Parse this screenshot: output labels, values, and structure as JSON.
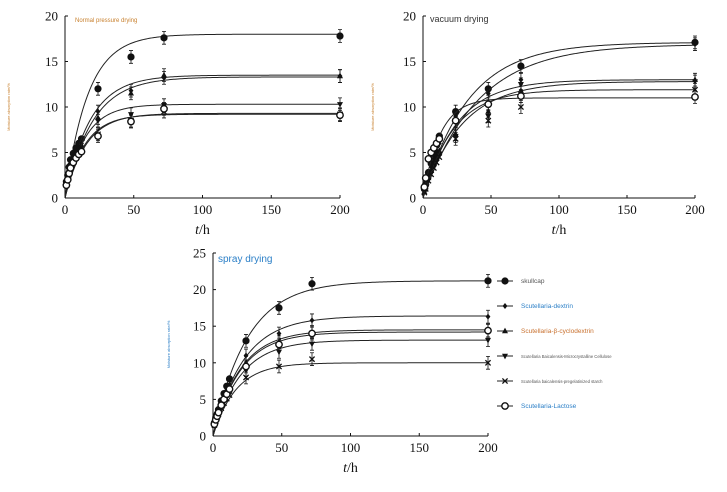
{
  "charts": [
    {
      "type": "line",
      "title": "Normal pressure drying",
      "title_color": "#c8802e",
      "ylabel": "Moisture absorption rate/%",
      "ylabel_color": "#c8802e",
      "xlabel_italic": "t",
      "xlabel_unit": "/h",
      "xlim": [
        0,
        200
      ],
      "ylim": [
        0,
        20
      ],
      "xticks": [
        "0",
        "50",
        "100",
        "150",
        "200"
      ],
      "yticks": [
        "0",
        "5",
        "10",
        "15",
        "20"
      ],
      "series": [
        {
          "marker": "circle-filled",
          "plateau": 18.0,
          "k": 0.06,
          "x": [
            1,
            2,
            3,
            4,
            6,
            8,
            10,
            12,
            24,
            48,
            72,
            200
          ],
          "y": [
            1.8,
            2.5,
            3.4,
            4.2,
            4.9,
            5.5,
            6.0,
            6.5,
            12.0,
            15.5,
            17.6,
            17.8
          ]
        },
        {
          "marker": "diamond",
          "plateau": 13.5,
          "k": 0.055,
          "x": [
            1,
            2,
            3,
            4,
            6,
            8,
            10,
            12,
            24,
            48,
            72,
            200
          ],
          "y": [
            1.6,
            2.4,
            3.2,
            4.0,
            4.6,
            5.1,
            5.6,
            6.0,
            9.5,
            11.8,
            13.2,
            13.4
          ]
        },
        {
          "marker": "triangle",
          "plateau": 13.3,
          "k": 0.05,
          "x": [
            1,
            2,
            3,
            4,
            6,
            8,
            10,
            12,
            24,
            48,
            72,
            200
          ],
          "y": [
            1.5,
            2.3,
            3.0,
            3.8,
            4.4,
            5.0,
            5.4,
            5.8,
            8.8,
            11.5,
            13.5,
            13.4
          ]
        },
        {
          "marker": "triangle-down",
          "plateau": 10.3,
          "k": 0.07,
          "x": [
            1,
            2,
            3,
            4,
            6,
            8,
            10,
            12,
            24,
            48,
            72,
            200
          ],
          "y": [
            1.5,
            2.2,
            3.0,
            3.6,
            4.2,
            4.7,
            5.1,
            5.5,
            8.5,
            9.2,
            10.2,
            10.3
          ]
        },
        {
          "marker": "x",
          "plateau": 9.2,
          "k": 0.07,
          "x": [
            1,
            2,
            3,
            4,
            6,
            8,
            10,
            12,
            24,
            48,
            72,
            200
          ],
          "y": [
            1.4,
            2.1,
            2.8,
            3.4,
            4.0,
            4.5,
            4.9,
            5.2,
            7.0,
            8.5,
            9.5,
            9.2
          ]
        },
        {
          "marker": "circle-open",
          "plateau": 9.3,
          "k": 0.065,
          "x": [
            1,
            2,
            3,
            4,
            6,
            8,
            10,
            12,
            24,
            48,
            72,
            200
          ],
          "y": [
            1.4,
            2.0,
            2.7,
            3.3,
            3.9,
            4.4,
            4.8,
            5.1,
            6.8,
            8.4,
            9.8,
            9.1
          ]
        }
      ]
    },
    {
      "type": "line",
      "title": "vacuum drying",
      "title_color": "#333333",
      "ylabel": "Moisture absorption rate/%",
      "ylabel_color": "#c8802e",
      "xlabel_italic": "t",
      "xlabel_unit": "/h",
      "xlim": [
        0,
        200
      ],
      "ylim": [
        0,
        20
      ],
      "xticks": [
        "0",
        "50",
        "100",
        "150",
        "200"
      ],
      "yticks": [
        "0",
        "5",
        "10",
        "15",
        "20"
      ],
      "series": [
        {
          "marker": "circle-filled",
          "plateau": 17.1,
          "k": 0.03,
          "x": [
            1,
            2,
            4,
            6,
            8,
            10,
            12,
            24,
            48,
            72,
            200
          ],
          "y": [
            1.0,
            1.5,
            2.8,
            3.8,
            4.8,
            5.8,
            6.8,
            9.5,
            12.0,
            14.5,
            17.1
          ]
        },
        {
          "marker": "diamond",
          "plateau": 16.9,
          "k": 0.025,
          "x": [
            1,
            2,
            4,
            6,
            8,
            10,
            12,
            24,
            48,
            72,
            200
          ],
          "y": [
            0.8,
            1.3,
            2.5,
            3.4,
            4.3,
            5.2,
            6.0,
            9.0,
            11.5,
            13.0,
            16.9
          ]
        },
        {
          "marker": "triangle",
          "plateau": 13.0,
          "k": 0.04,
          "x": [
            1,
            2,
            4,
            6,
            8,
            10,
            12,
            24,
            48,
            72,
            200
          ],
          "y": [
            0.7,
            1.2,
            2.2,
            3.0,
            3.8,
            4.5,
            5.2,
            7.0,
            9.5,
            11.8,
            13.0
          ]
        },
        {
          "marker": "triangle-down",
          "plateau": 12.8,
          "k": 0.035,
          "x": [
            1,
            2,
            4,
            6,
            8,
            10,
            12,
            24,
            48,
            72,
            200
          ],
          "y": [
            0.7,
            1.1,
            2.0,
            2.8,
            3.5,
            4.2,
            4.8,
            6.8,
            9.0,
            12.5,
            12.8
          ]
        },
        {
          "marker": "x",
          "plateau": 11.9,
          "k": 0.045,
          "x": [
            1,
            2,
            4,
            6,
            8,
            10,
            12,
            24,
            48,
            72,
            200
          ],
          "y": [
            0.6,
            1.0,
            1.9,
            2.6,
            3.3,
            3.9,
            4.5,
            6.5,
            8.5,
            10.0,
            11.9
          ]
        },
        {
          "marker": "circle-open",
          "plateau": 11.0,
          "k": 0.08,
          "x": [
            1,
            2,
            4,
            6,
            8,
            10,
            12,
            24,
            48,
            72,
            200
          ],
          "y": [
            1.2,
            2.2,
            4.3,
            5.0,
            5.5,
            6.0,
            6.5,
            8.5,
            10.3,
            11.2,
            11.1
          ]
        }
      ]
    },
    {
      "type": "line",
      "title": "spray drying",
      "title_color": "#2b7fc7",
      "ylabel": "Moisture absorption rate/%",
      "ylabel_color": "#2b7fc7",
      "xlabel_italic": "t",
      "xlabel_unit": "/h",
      "xlim": [
        0,
        200
      ],
      "ylim": [
        0,
        25
      ],
      "xticks": [
        "0",
        "50",
        "100",
        "150",
        "200"
      ],
      "yticks": [
        "0",
        "5",
        "10",
        "15",
        "20",
        "25"
      ],
      "legend_position": "right",
      "series": [
        {
          "name": "skullcap",
          "name_color": "#555555",
          "marker": "circle-filled",
          "plateau": 21.2,
          "k": 0.04,
          "x": [
            1,
            2,
            3,
            4,
            6,
            8,
            10,
            12,
            24,
            48,
            72,
            200
          ],
          "y": [
            1.8,
            2.5,
            3.0,
            3.6,
            4.8,
            5.8,
            6.8,
            7.8,
            13.0,
            17.5,
            20.8,
            21.2
          ]
        },
        {
          "name": "Scutellaria-dextrin",
          "name_color": "#2b7fc7",
          "marker": "diamond",
          "plateau": 16.4,
          "k": 0.045,
          "x": [
            1,
            2,
            3,
            4,
            6,
            8,
            10,
            12,
            24,
            48,
            72,
            200
          ],
          "y": [
            1.7,
            2.3,
            2.9,
            3.4,
            4.5,
            5.4,
            6.2,
            7.0,
            11.0,
            14.0,
            15.8,
            16.3
          ]
        },
        {
          "name": "Scutellaria-β-cyclodextrin",
          "name_color": "#c8702e",
          "marker": "triangle",
          "plateau": 14.5,
          "k": 0.05,
          "x": [
            1,
            2,
            3,
            4,
            6,
            8,
            10,
            12,
            24,
            48,
            72,
            200
          ],
          "y": [
            1.6,
            2.2,
            2.7,
            3.2,
            4.2,
            5.0,
            5.8,
            6.5,
            10.0,
            12.8,
            14.2,
            14.4
          ]
        },
        {
          "name": "Scutellaria Baicalensis-Microcrystalline Cellulose",
          "name_color": "#555555",
          "marker": "triangle-down",
          "plateau": 13.1,
          "k": 0.05,
          "x": [
            1,
            2,
            3,
            4,
            6,
            8,
            10,
            12,
            24,
            48,
            72,
            200
          ],
          "y": [
            1.5,
            2.1,
            2.6,
            3.1,
            4.0,
            4.8,
            5.5,
            6.1,
            9.0,
            11.5,
            12.6,
            13.1
          ]
        },
        {
          "name": "Scutellaria baicalensis-pregelatinized starch",
          "name_color": "#555555",
          "marker": "x",
          "plateau": 10.0,
          "k": 0.06,
          "x": [
            1,
            2,
            3,
            4,
            6,
            8,
            10,
            12,
            24,
            48,
            72,
            200
          ],
          "y": [
            1.5,
            2.0,
            2.5,
            3.0,
            3.8,
            4.5,
            5.1,
            5.6,
            8.0,
            9.5,
            10.5,
            10.0
          ]
        },
        {
          "name": "Scutellaria-Lactose",
          "name_color": "#2b7fc7",
          "marker": "circle-open",
          "plateau": 14.2,
          "k": 0.05,
          "x": [
            1,
            2,
            3,
            4,
            6,
            8,
            10,
            12,
            24,
            48,
            72,
            200
          ],
          "y": [
            1.6,
            2.2,
            2.7,
            3.2,
            4.2,
            5.0,
            5.7,
            6.4,
            9.5,
            12.5,
            14.0,
            14.4
          ]
        }
      ]
    }
  ]
}
